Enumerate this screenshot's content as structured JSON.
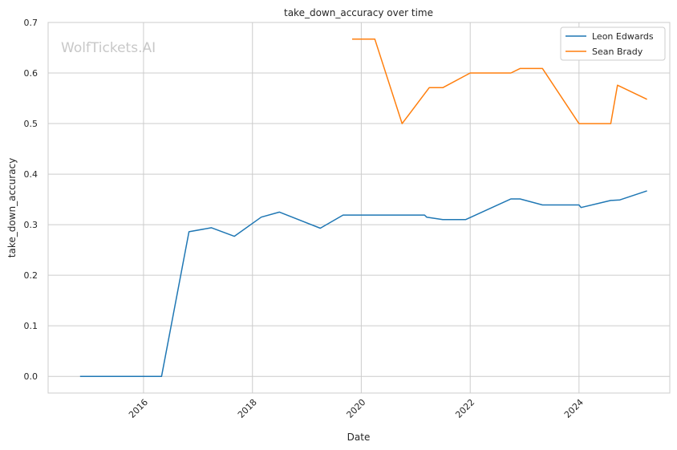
{
  "chart_data": {
    "type": "line",
    "title": "take_down_accuracy over time",
    "xlabel": "Date",
    "ylabel": "take_down_accuracy",
    "watermark": "WolfTickets.AI",
    "ylim": [
      -0.033,
      0.7
    ],
    "xlim": [
      "2014-04-01",
      "2025-09-01"
    ],
    "y_ticks": [
      "0.0",
      "0.1",
      "0.2",
      "0.3",
      "0.4",
      "0.5",
      "0.6",
      "0.7"
    ],
    "x_ticks": [
      "2016",
      "2018",
      "2020",
      "2022",
      "2024"
    ],
    "grid": true,
    "legend_position": "top-right",
    "series": [
      {
        "name": "Leon Edwards",
        "color": "#1f77b4",
        "points": [
          [
            "2014-11-01",
            0.0
          ],
          [
            "2016-05-01",
            0.0
          ],
          [
            "2016-11-01",
            0.286
          ],
          [
            "2017-04-01",
            0.294
          ],
          [
            "2017-09-01",
            0.277
          ],
          [
            "2018-03-01",
            0.315
          ],
          [
            "2018-07-01",
            0.325
          ],
          [
            "2019-04-01",
            0.293
          ],
          [
            "2019-09-01",
            0.319
          ],
          [
            "2021-03-01",
            0.319
          ],
          [
            "2021-03-15",
            0.315
          ],
          [
            "2021-07-01",
            0.31
          ],
          [
            "2021-12-01",
            0.31
          ],
          [
            "2022-10-01",
            0.351
          ],
          [
            "2022-12-01",
            0.351
          ],
          [
            "2023-05-01",
            0.339
          ],
          [
            "2024-01-01",
            0.339
          ],
          [
            "2024-01-15",
            0.334
          ],
          [
            "2024-08-01",
            0.348
          ],
          [
            "2024-10-01",
            0.349
          ],
          [
            "2025-04-01",
            0.367
          ]
        ]
      },
      {
        "name": "Sean Brady",
        "color": "#ff7f0e",
        "points": [
          [
            "2019-11-01",
            0.667
          ],
          [
            "2020-04-01",
            0.667
          ],
          [
            "2020-10-01",
            0.5
          ],
          [
            "2021-04-01",
            0.571
          ],
          [
            "2021-07-01",
            0.571
          ],
          [
            "2022-01-01",
            0.6
          ],
          [
            "2022-10-01",
            0.6
          ],
          [
            "2022-12-01",
            0.609
          ],
          [
            "2023-05-01",
            0.609
          ],
          [
            "2024-01-01",
            0.5
          ],
          [
            "2024-08-01",
            0.5
          ],
          [
            "2024-09-15",
            0.576
          ],
          [
            "2025-04-01",
            0.548
          ]
        ]
      }
    ]
  }
}
